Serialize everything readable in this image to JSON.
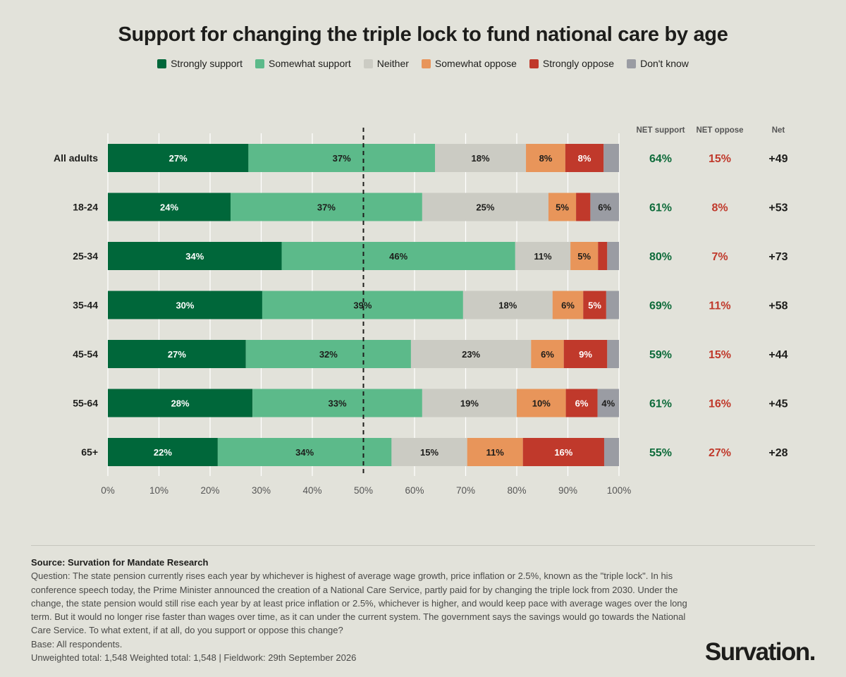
{
  "title": "Support for changing the triple lock to fund national care by age",
  "legend": [
    {
      "label": "Strongly support",
      "color": "#00673a"
    },
    {
      "label": "Somewhat support",
      "color": "#5cba8a"
    },
    {
      "label": "Neither",
      "color": "#cbcbc3"
    },
    {
      "label": "Somewhat oppose",
      "color": "#e8955a"
    },
    {
      "label": "Strongly oppose",
      "color": "#c0392b"
    },
    {
      "label": "Don't know",
      "color": "#9a9ca3"
    }
  ],
  "chart_data": {
    "type": "bar",
    "orientation": "horizontal-stacked",
    "categories": [
      "All adults",
      "18-24",
      "25-34",
      "35-44",
      "45-54",
      "55-64",
      "65+"
    ],
    "series": [
      {
        "name": "Strongly support",
        "values": [
          27.5,
          24,
          34,
          30.2,
          27,
          28.3,
          21.5
        ],
        "labels": [
          "27%",
          "24%",
          "34%",
          "30%",
          "27%",
          "28%",
          "22%"
        ]
      },
      {
        "name": "Somewhat support",
        "values": [
          36.5,
          37.5,
          45.7,
          39.3,
          32.3,
          33.2,
          34
        ],
        "labels": [
          "37%",
          "37%",
          "46%",
          "39%",
          "32%",
          "33%",
          "34%"
        ]
      },
      {
        "name": "Neither",
        "values": [
          17.8,
          24.7,
          10.8,
          17.5,
          23.5,
          18.5,
          14.8
        ],
        "labels": [
          "18%",
          "25%",
          "11%",
          "18%",
          "23%",
          "19%",
          "15%"
        ]
      },
      {
        "name": "Somewhat oppose",
        "values": [
          7.7,
          5.4,
          5.4,
          6,
          6.4,
          9.6,
          10.9
        ],
        "labels": [
          "8%",
          "5%",
          "5%",
          "6%",
          "6%",
          "10%",
          "11%"
        ]
      },
      {
        "name": "Strongly oppose",
        "values": [
          7.5,
          2.8,
          1.8,
          4.5,
          8.5,
          6.2,
          15.9
        ],
        "labels": [
          "8%",
          "",
          "",
          "5%",
          "9%",
          "6%",
          "16%"
        ]
      },
      {
        "name": "Don't know",
        "values": [
          3,
          5.6,
          2.3,
          2.5,
          2.3,
          4.2,
          2.9
        ],
        "labels": [
          "",
          "6%",
          "",
          "",
          "",
          "4%",
          ""
        ]
      }
    ],
    "net_support": [
      "64%",
      "61%",
      "80%",
      "69%",
      "59%",
      "61%",
      "55%"
    ],
    "net_oppose": [
      "15%",
      "8%",
      "7%",
      "11%",
      "15%",
      "16%",
      "27%"
    ],
    "net": [
      "+49",
      "+53",
      "+73",
      "+58",
      "+44",
      "+45",
      "+28"
    ],
    "net_headers": [
      "NET support",
      "NET oppose",
      "Net"
    ],
    "xlim": [
      0,
      100
    ],
    "xticks": [
      "0%",
      "10%",
      "20%",
      "30%",
      "40%",
      "50%",
      "60%",
      "70%",
      "80%",
      "90%",
      "100%"
    ],
    "reference_line": 50,
    "grid": true,
    "colors": {
      "net_support": "#0e6b3a",
      "net_oppose": "#c0392b"
    }
  },
  "footer": {
    "source": "Source: Survation for Mandate Research",
    "question": "Question: The state pension currently rises each year by whichever is highest of average wage growth, price inflation or 2.5%, known as the \"triple lock\". In his conference speech today, the Prime Minister announced the creation of a National Care Service, partly paid for by changing the triple lock from 2030. Under the change, the state pension would still rise each year by at least price inflation or 2.5%, whichever is higher, and would keep pace with average wages over the long term. But it would no longer rise faster than wages over time, as it can under the current system. The government says the savings would go towards the National Care Service. To what extent, if at all, do you support or oppose this change?",
    "base": "Base: All respondents.",
    "totals": "Unweighted total: 1,548 Weighted total: 1,548 | Fieldwork: 29th September 2026"
  },
  "logo": "Survation."
}
